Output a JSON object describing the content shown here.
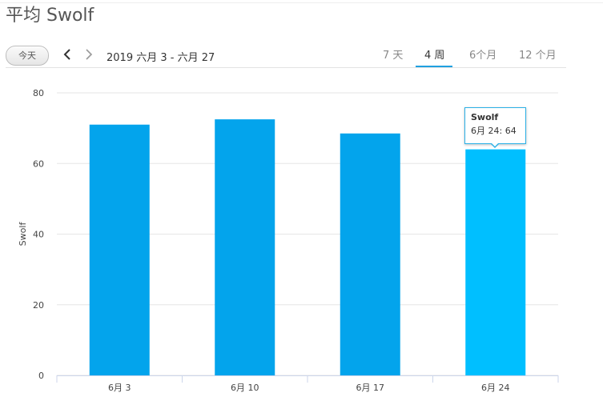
{
  "header": {
    "title": "平均 Swolf"
  },
  "toolbar": {
    "today_label": "今天",
    "prev_icon": "chevron-left-icon",
    "next_icon": "chevron-right-icon",
    "date_range": "2019 六月 3 - 六月 27",
    "tabs": [
      {
        "label": "7 天",
        "active": false
      },
      {
        "label": "4 周",
        "active": true
      },
      {
        "label": "6个月",
        "active": false
      },
      {
        "label": "12 个月",
        "active": false
      }
    ]
  },
  "tooltip": {
    "title": "Swolf",
    "value": "6月 24: 64"
  },
  "colors": {
    "bar": "#03a4ec",
    "bar_highlight": "#00bfff",
    "accent": "#1fa0e0",
    "grid": "#e6e6e6"
  },
  "chart_data": {
    "type": "bar",
    "categories": [
      "6月 3",
      "6月 10",
      "6月 17",
      "6月 24"
    ],
    "values": [
      71,
      72.5,
      68.5,
      64
    ],
    "highlighted_index": 3,
    "ylabel": "Swolf",
    "xlabel": "",
    "ylim": [
      0,
      80
    ],
    "yticks": [
      0,
      20,
      40,
      60,
      80
    ],
    "grid": true,
    "legend": "none"
  }
}
